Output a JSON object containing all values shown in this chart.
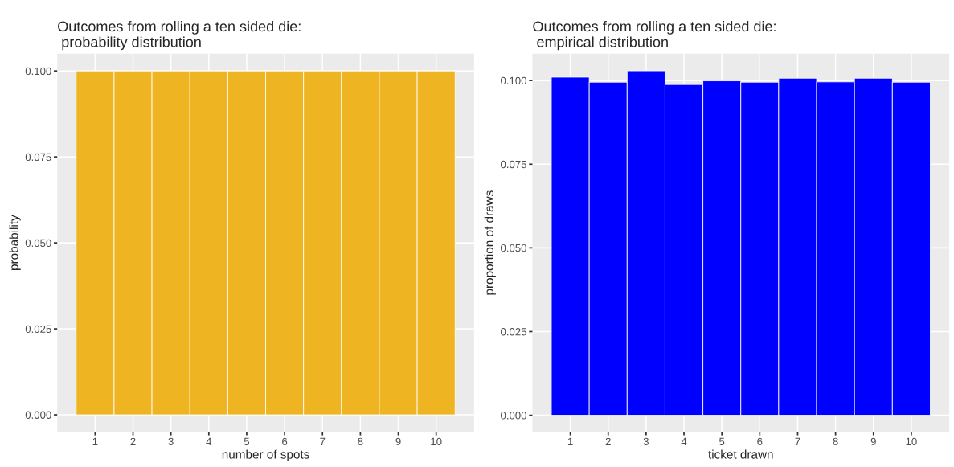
{
  "chart_data": [
    {
      "type": "bar",
      "title": "Outcomes from rolling a ten sided die:\n probability distribution",
      "xlabel": "number of spots",
      "ylabel": "probability",
      "categories": [
        "1",
        "2",
        "3",
        "4",
        "5",
        "6",
        "7",
        "8",
        "9",
        "10"
      ],
      "values": [
        0.1,
        0.1,
        0.1,
        0.1,
        0.1,
        0.1,
        0.1,
        0.1,
        0.1,
        0.1
      ],
      "color": "#efb421",
      "ylim": [
        -0.005,
        0.105
      ],
      "yticks": [
        {
          "value": 0,
          "label": "0.000"
        },
        {
          "value": 0.025,
          "label": "0.025"
        },
        {
          "value": 0.05,
          "label": "0.050"
        },
        {
          "value": 0.075,
          "label": "0.075"
        },
        {
          "value": 0.1,
          "label": "0.100"
        }
      ],
      "grid": true,
      "legend": false
    },
    {
      "type": "bar",
      "title": "Outcomes from rolling a ten sided die:\n empirical distribution",
      "xlabel": "ticket drawn",
      "ylabel": "proportion of draws",
      "categories": [
        "1",
        "2",
        "3",
        "4",
        "5",
        "6",
        "7",
        "8",
        "9",
        "10"
      ],
      "values": [
        0.101,
        0.0995,
        0.1029,
        0.0988,
        0.0999,
        0.0995,
        0.1007,
        0.0996,
        0.1007,
        0.0995
      ],
      "color": "#0000ff",
      "ylim": [
        -0.005,
        0.108
      ],
      "yticks": [
        {
          "value": 0,
          "label": "0.000"
        },
        {
          "value": 0.025,
          "label": "0.025"
        },
        {
          "value": 0.05,
          "label": "0.050"
        },
        {
          "value": 0.075,
          "label": "0.075"
        },
        {
          "value": 0.1,
          "label": "0.100"
        }
      ],
      "grid": true,
      "legend": false
    }
  ]
}
